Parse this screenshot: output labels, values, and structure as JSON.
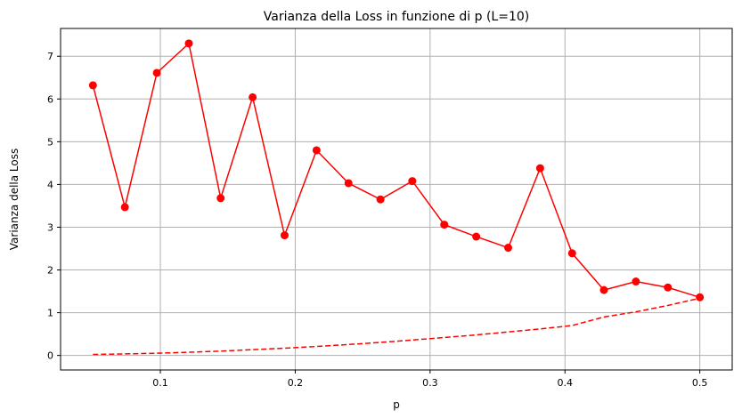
{
  "chart_data": {
    "type": "line",
    "title": "Varianza della Loss in funzione di p (L=10)",
    "xlabel": "p",
    "ylabel": "Varianza della Loss",
    "xlim": [
      0.026,
      0.524
    ],
    "ylim": [
      -0.34,
      7.65
    ],
    "xticks": [
      0.1,
      0.2,
      0.3,
      0.4,
      0.5
    ],
    "xtick_labels": [
      "0.1",
      "0.2",
      "0.3",
      "0.4",
      "0.5"
    ],
    "yticks": [
      0,
      1,
      2,
      3,
      4,
      5,
      6,
      7
    ],
    "ytick_labels": [
      "0",
      "1",
      "2",
      "3",
      "4",
      "5",
      "6",
      "7"
    ],
    "grid": true,
    "series": [
      {
        "style": "solid-markers",
        "color": "#ff0000",
        "x": [
          0.05,
          0.0737,
          0.0974,
          0.1211,
          0.1447,
          0.1684,
          0.1921,
          0.2158,
          0.2395,
          0.2632,
          0.2868,
          0.3105,
          0.3342,
          0.3579,
          0.3816,
          0.4053,
          0.4289,
          0.4526,
          0.4763,
          0.5
        ],
        "y": [
          6.32,
          3.47,
          6.61,
          7.3,
          3.68,
          6.04,
          2.81,
          4.8,
          4.03,
          3.65,
          4.08,
          3.06,
          2.78,
          2.52,
          4.38,
          2.39,
          1.53,
          1.73,
          1.59,
          1.36
        ]
      },
      {
        "style": "dashed",
        "color": "#ff0000",
        "x": [
          0.05,
          0.0737,
          0.0974,
          0.1211,
          0.1447,
          0.1684,
          0.1921,
          0.2158,
          0.2395,
          0.2632,
          0.2868,
          0.3105,
          0.3342,
          0.3579,
          0.3816,
          0.4053,
          0.4289,
          0.4526,
          0.4763,
          0.5
        ],
        "y": [
          0.023,
          0.036,
          0.052,
          0.075,
          0.102,
          0.135,
          0.17,
          0.21,
          0.256,
          0.305,
          0.36,
          0.42,
          0.48,
          0.55,
          0.62,
          0.7,
          0.9,
          1.02,
          1.17,
          1.34
        ]
      }
    ]
  }
}
